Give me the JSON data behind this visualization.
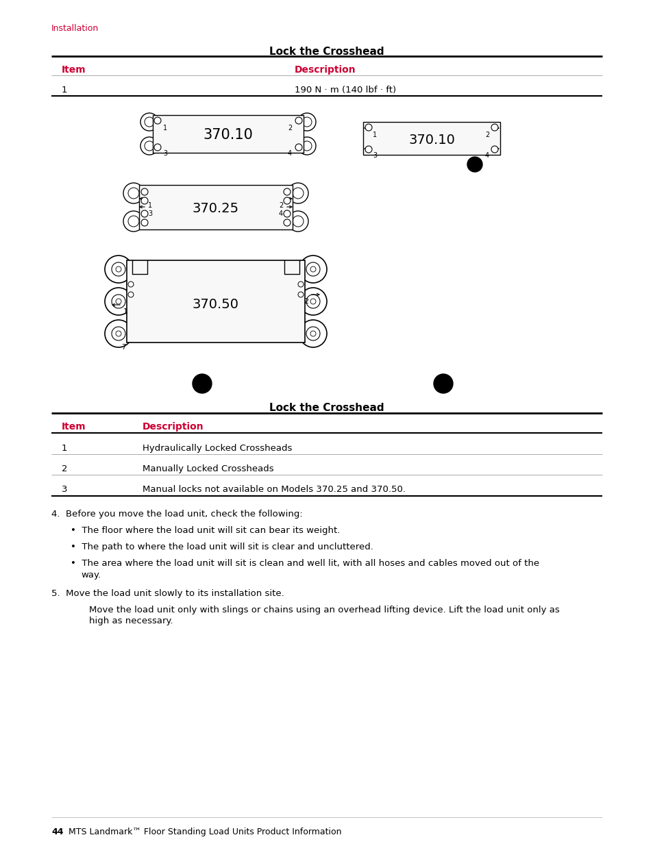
{
  "bg_color": "#ffffff",
  "text_color": "#000000",
  "red_color": "#cc0033",
  "section_label": "Installation",
  "title1": "Lock the Crosshead",
  "table1_item_header": "Item",
  "table1_desc_header": "Description",
  "table1_row1_item": "1",
  "table1_row1_desc": "190 N · m (140 lbf · ft)",
  "title2": "Lock the Crosshead",
  "table2_item_header": "Item",
  "table2_desc_header": "Description",
  "table2_rows": [
    [
      "1",
      "Hydraulically Locked Crossheads"
    ],
    [
      "2",
      "Manually Locked Crossheads"
    ],
    [
      "3",
      "Manual locks not available on Models 370.25 and 370.50."
    ]
  ],
  "step4_intro": "4.  Before you move the load unit, check the following:",
  "bullet1": "The floor where the load unit will sit can bear its weight.",
  "bullet2": "The path to where the load unit will sit is clear and uncluttered.",
  "bullet3a": "The area where the load unit will sit is clean and well lit, with all hoses and cables moved out of the",
  "bullet3b": "way.",
  "step5_intro": "5.  Move the load unit slowly to its installation site.",
  "step5_para1": "Move the load unit only with slings or chains using an overhead lifting device. Lift the load unit only as",
  "step5_para2": "high as necessary.",
  "footer_num": "44",
  "footer_text": "MTS Landmark™ Floor Standing Load Units Product Information",
  "model_370_10": "370.10",
  "model_370_25": "370.25",
  "model_370_50": "370.50"
}
